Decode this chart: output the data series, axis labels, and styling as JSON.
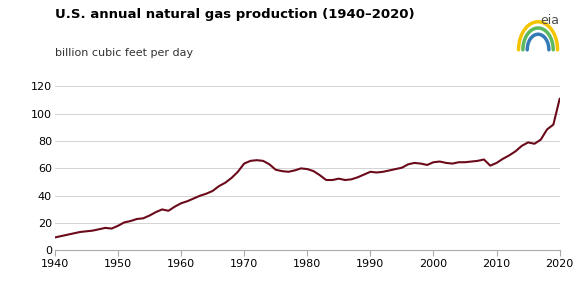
{
  "title": "U.S. annual natural gas production (1940–2020)",
  "ylabel": "billion cubic feet per day",
  "line_color": "#6b0a1a",
  "line_width": 1.5,
  "background_color": "#ffffff",
  "xlim": [
    1940,
    2020
  ],
  "ylim": [
    0,
    120
  ],
  "yticks": [
    0,
    20,
    40,
    60,
    80,
    100,
    120
  ],
  "xticks": [
    1940,
    1950,
    1960,
    1970,
    1980,
    1990,
    2000,
    2010,
    2020
  ],
  "years": [
    1940,
    1941,
    1942,
    1943,
    1944,
    1945,
    1946,
    1947,
    1948,
    1949,
    1950,
    1951,
    1952,
    1953,
    1954,
    1955,
    1956,
    1957,
    1958,
    1959,
    1960,
    1961,
    1962,
    1963,
    1964,
    1965,
    1966,
    1967,
    1968,
    1969,
    1970,
    1971,
    1972,
    1973,
    1974,
    1975,
    1976,
    1977,
    1978,
    1979,
    1980,
    1981,
    1982,
    1983,
    1984,
    1985,
    1986,
    1987,
    1988,
    1989,
    1990,
    1991,
    1992,
    1993,
    1994,
    1995,
    1996,
    1997,
    1998,
    1999,
    2000,
    2001,
    2002,
    2003,
    2004,
    2005,
    2006,
    2007,
    2008,
    2009,
    2010,
    2011,
    2012,
    2013,
    2014,
    2015,
    2016,
    2017,
    2018,
    2019,
    2020
  ],
  "values": [
    9.5,
    10.5,
    11.5,
    12.5,
    13.5,
    14.0,
    14.5,
    15.5,
    16.5,
    16.0,
    18.0,
    20.5,
    21.5,
    23.0,
    23.5,
    25.5,
    28.0,
    30.0,
    29.0,
    32.0,
    34.5,
    36.0,
    38.0,
    40.0,
    41.5,
    43.5,
    47.0,
    49.5,
    53.0,
    57.5,
    63.5,
    65.5,
    66.0,
    65.5,
    63.0,
    59.0,
    58.0,
    57.5,
    58.5,
    60.0,
    59.5,
    58.0,
    55.0,
    51.5,
    51.5,
    52.5,
    51.5,
    52.0,
    53.5,
    55.5,
    57.5,
    57.0,
    57.5,
    58.5,
    59.5,
    60.5,
    63.0,
    64.0,
    63.5,
    62.5,
    64.5,
    65.0,
    64.0,
    63.5,
    64.5,
    64.5,
    65.0,
    65.5,
    66.5,
    62.0,
    64.0,
    67.0,
    69.5,
    72.5,
    76.5,
    79.0,
    78.0,
    81.0,
    88.5,
    92.0,
    111.0
  ],
  "title_fontsize": 9.5,
  "ylabel_fontsize": 8,
  "tick_fontsize": 8,
  "grid_color": "#cccccc",
  "spine_color": "#aaaaaa",
  "eia_text": "eia",
  "eia_color": "#4a4a4a"
}
